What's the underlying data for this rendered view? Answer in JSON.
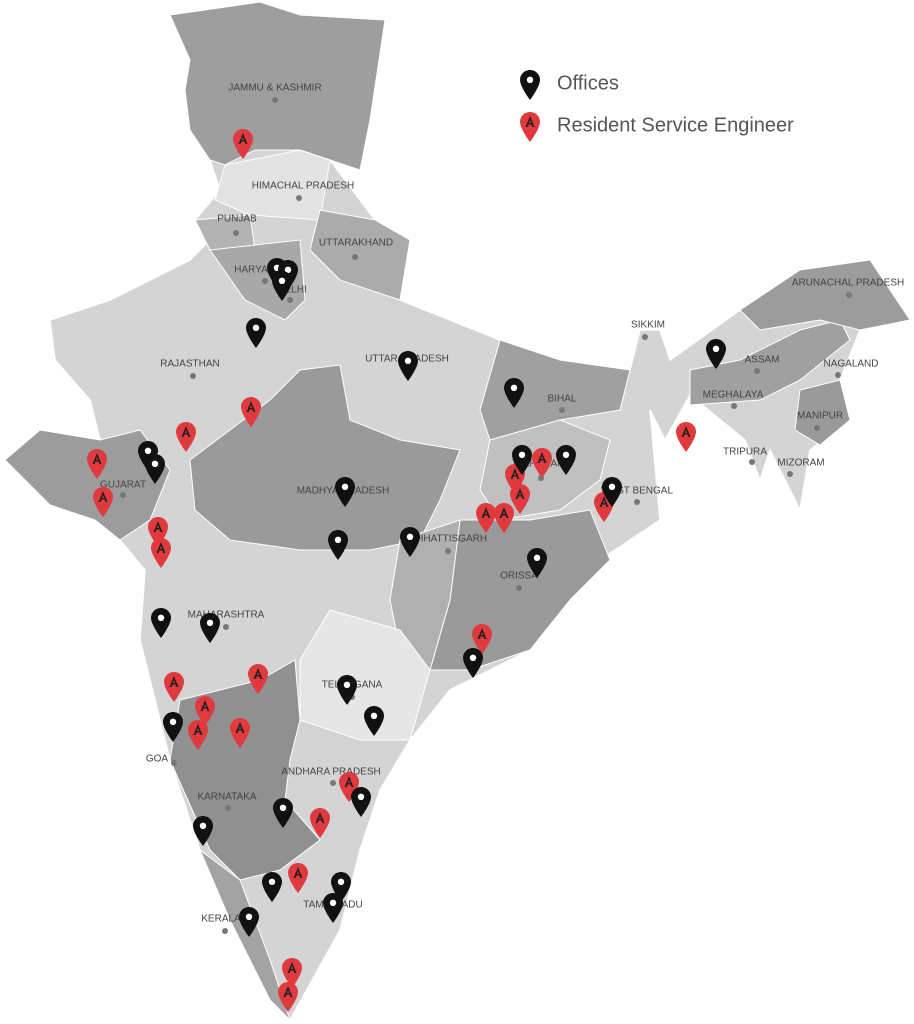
{
  "legend": {
    "items": [
      "Offices",
      "Resident Service Engineer"
    ]
  },
  "states": [
    "JAMMU & KASHMIR",
    "HIMACHAL PRADESH",
    "PUNJAB",
    "UTTARAKHAND",
    "HARYANA",
    "DELHI",
    "RAJASTHAN",
    "UTTAR PRADESH",
    "BIHAL",
    "SIKKIM",
    "ASSAM",
    "ARUNACHAL PRADESH",
    "NAGALAND",
    "MEGHALAYA",
    "MANIPUR",
    "TRIPURA",
    "MIZORAM",
    "GUJARAT",
    "MADHYA PRADESH",
    "JHARKHAND",
    "WEST BENGAL",
    "CHHATTISGARH",
    "ORISSA",
    "MAHARASHTRA",
    "TELANGANA",
    "GOA",
    "ANDHARA PRADESH",
    "KARNATAKA",
    "TAMIL NADU",
    "KERALA"
  ]
}
